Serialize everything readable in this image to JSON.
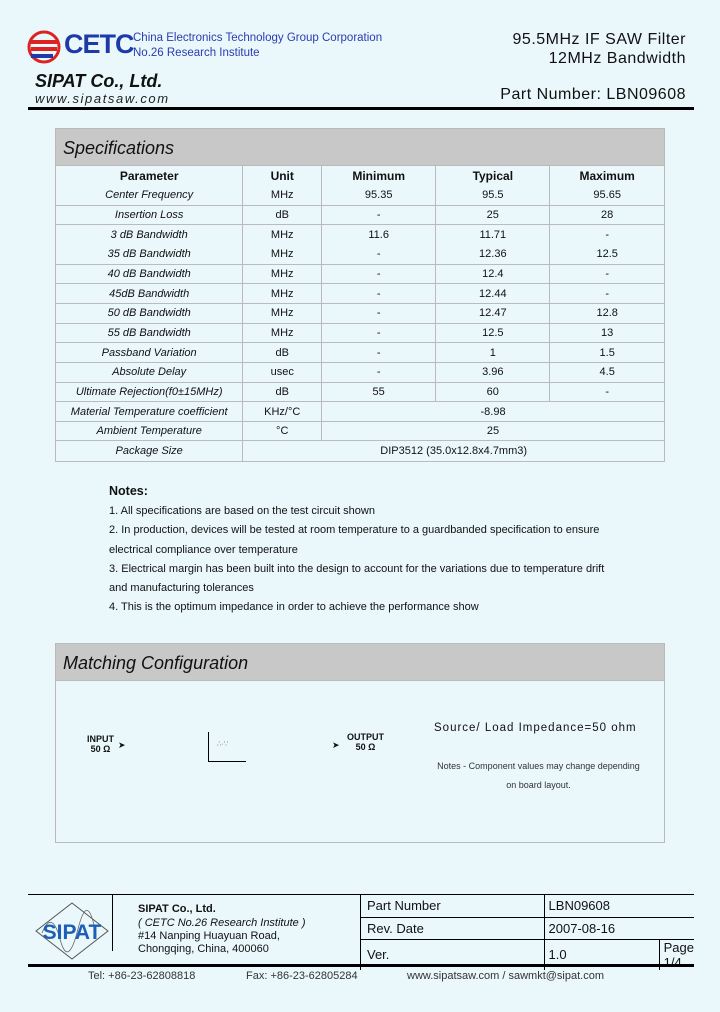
{
  "header": {
    "logo_text": "CETC",
    "corp_line1": "China Electronics Technology Group Corporation",
    "corp_line2": "No.26 Research Institute",
    "title_line1": "95.5MHz IF SAW Filter",
    "title_line2": "12MHz Bandwidth",
    "company": "SIPAT Co., Ltd.",
    "website": "www.sipatsaw.com",
    "part_number_label": "Part Number: LBN09608"
  },
  "specs": {
    "title": "Specifications",
    "columns": [
      "Parameter",
      "Unit",
      "Minimum",
      "Typical",
      "Maximum"
    ],
    "rows": [
      [
        "Center Frequency",
        "MHz",
        "95.35",
        "95.5",
        "95.65"
      ],
      [
        "Insertion Loss",
        "dB",
        "-",
        "25",
        "28"
      ],
      [
        "3 dB Bandwidth",
        "MHz",
        "11.6",
        "11.71",
        "-"
      ],
      [
        "35 dB Bandwidth",
        "MHz",
        "-",
        "12.36",
        "12.5"
      ],
      [
        "40 dB Bandwidth",
        "MHz",
        "-",
        "12.4",
        "-"
      ],
      [
        "45dB Bandwidth",
        "MHz",
        "-",
        "12.44",
        "-"
      ],
      [
        "50 dB Bandwidth",
        "MHz",
        "-",
        "12.47",
        "12.8"
      ],
      [
        "55 dB Bandwidth",
        "MHz",
        "-",
        "12.5",
        "13"
      ],
      [
        "Passband Variation",
        "dB",
        "-",
        "1",
        "1.5"
      ],
      [
        "Absolute Delay",
        "usec",
        "-",
        "3.96",
        "4.5"
      ],
      [
        "Ultimate Rejection(f0±15MHz)",
        "dB",
        "55",
        "60",
        "-"
      ]
    ],
    "merged_rows": [
      [
        "Material Temperature coefficient",
        "KHz/°C",
        "-8.98"
      ],
      [
        "Ambient Temperature",
        "°C",
        "25"
      ],
      [
        "Package Size",
        "",
        "DIP3512    (35.0x12.8x4.7mm3)"
      ]
    ]
  },
  "notes": {
    "title": "Notes:",
    "lines": [
      "1. All specifications are based on the test circuit shown",
      "2. In production, devices will be tested at room temperature to a guardbanded specification to ensure",
      "electrical compliance over temperature",
      "3. Electrical margin has been built into the design to account for the variations due to temperature drift",
      "and manufacturing tolerances",
      "4. This is the optimum impedance in order to achieve the performance show"
    ]
  },
  "matching": {
    "title": "Matching Configuration",
    "input_label": "INPUT",
    "input_imp": "50 Ω",
    "output_label": "OUTPUT",
    "output_imp": "50 Ω",
    "impedance": "Source/ Load Impedance=50 ohm",
    "note1": "Notes - Component values may change depending",
    "note2": "on board layout."
  },
  "footer": {
    "logo_text": "SIPAT",
    "company": "SIPAT Co., Ltd.",
    "institute": "( CETC No.26 Research Institute )",
    "address1": "#14 Nanping Huayuan Road,",
    "address2": "Chongqing, China, 400060",
    "part_number_label": "Part Number",
    "part_number": "LBN09608",
    "rev_date_label": "Rev. Date",
    "rev_date": "2007-08-16",
    "ver_label": "Ver.",
    "ver": "1.0",
    "page_label": "Page   1/4",
    "tel": "Tel:  +86-23-62808818",
    "fax": "Fax:  +86-23-62805284",
    "web_email": "www.sipatsaw.com  /  sawmkt@sipat.com"
  }
}
